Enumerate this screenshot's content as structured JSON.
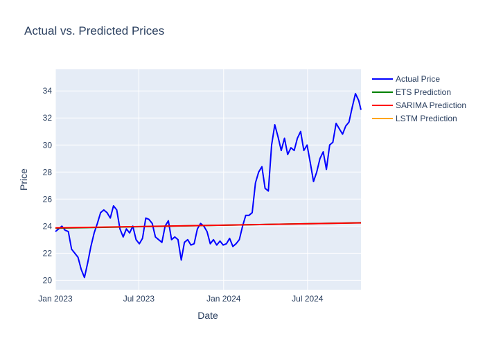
{
  "chart_data": {
    "type": "line",
    "title": "Actual vs. Predicted Prices",
    "xlabel": "Date",
    "ylabel": "Price",
    "x_axis_type": "date",
    "xlim": [
      "2023-01-01",
      "2024-10-25"
    ],
    "ylim": [
      19.3,
      35.6
    ],
    "xticks": [
      {
        "value": "2023-01-01",
        "label": "Jan 2023"
      },
      {
        "value": "2023-07-01",
        "label": "Jul 2023"
      },
      {
        "value": "2024-01-01",
        "label": "Jan 2024"
      },
      {
        "value": "2024-07-01",
        "label": "Jul 2024"
      }
    ],
    "yticks": [
      20,
      22,
      24,
      26,
      28,
      30,
      32,
      34
    ],
    "grid": true,
    "legend_position": "top-right, outside plot",
    "colors": {
      "plot_background": "#e5ecf6",
      "grid": "#ffffff",
      "text": "#2a3f5f"
    },
    "series": [
      {
        "name": "Actual Price",
        "color": "#0000ff",
        "x": [
          "2023-01-01",
          "2023-01-08",
          "2023-01-15",
          "2023-01-22",
          "2023-01-29",
          "2023-02-05",
          "2023-02-12",
          "2023-02-19",
          "2023-02-26",
          "2023-03-05",
          "2023-03-12",
          "2023-03-19",
          "2023-03-26",
          "2023-04-02",
          "2023-04-09",
          "2023-04-16",
          "2023-04-23",
          "2023-04-30",
          "2023-05-07",
          "2023-05-14",
          "2023-05-21",
          "2023-05-28",
          "2023-06-04",
          "2023-06-11",
          "2023-06-18",
          "2023-06-25",
          "2023-07-02",
          "2023-07-09",
          "2023-07-16",
          "2023-07-23",
          "2023-07-30",
          "2023-08-06",
          "2023-08-13",
          "2023-08-20",
          "2023-08-27",
          "2023-09-03",
          "2023-09-10",
          "2023-09-17",
          "2023-09-24",
          "2023-10-01",
          "2023-10-08",
          "2023-10-15",
          "2023-10-22",
          "2023-10-29",
          "2023-11-05",
          "2023-11-12",
          "2023-11-19",
          "2023-11-26",
          "2023-12-03",
          "2023-12-10",
          "2023-12-17",
          "2023-12-24",
          "2023-12-31",
          "2024-01-07",
          "2024-01-14",
          "2024-01-21",
          "2024-01-28",
          "2024-02-04",
          "2024-02-11",
          "2024-02-18",
          "2024-02-25",
          "2024-03-03",
          "2024-03-10",
          "2024-03-17",
          "2024-03-24",
          "2024-03-31",
          "2024-04-07",
          "2024-04-14",
          "2024-04-21",
          "2024-04-28",
          "2024-05-05",
          "2024-05-12",
          "2024-05-19",
          "2024-05-26",
          "2024-06-02",
          "2024-06-09",
          "2024-06-16",
          "2024-06-23",
          "2024-06-30",
          "2024-07-07",
          "2024-07-14",
          "2024-07-21",
          "2024-07-28",
          "2024-08-04",
          "2024-08-11",
          "2024-08-18",
          "2024-08-25",
          "2024-09-01",
          "2024-09-08",
          "2024-09-15",
          "2024-09-22",
          "2024-09-29",
          "2024-10-06",
          "2024-10-13",
          "2024-10-20",
          "2024-10-25"
        ],
        "y": [
          23.6,
          23.8,
          24.0,
          23.7,
          23.6,
          22.3,
          22.0,
          21.7,
          20.8,
          20.2,
          21.3,
          22.5,
          23.5,
          24.2,
          25.0,
          25.2,
          25.0,
          24.6,
          25.5,
          25.2,
          23.8,
          23.2,
          23.8,
          23.5,
          24.0,
          23.0,
          22.7,
          23.1,
          24.6,
          24.5,
          24.2,
          23.2,
          23.0,
          22.8,
          24.0,
          24.4,
          23.0,
          23.2,
          23.0,
          21.5,
          22.8,
          23.0,
          22.6,
          22.7,
          23.8,
          24.2,
          24.0,
          23.6,
          22.7,
          23.0,
          22.6,
          22.9,
          22.6,
          22.7,
          23.1,
          22.5,
          22.7,
          23.0,
          24.0,
          24.8,
          24.8,
          25.0,
          27.2,
          28.0,
          28.4,
          26.8,
          26.6,
          30.0,
          31.5,
          30.6,
          29.6,
          30.5,
          29.3,
          29.8,
          29.6,
          30.5,
          31.0,
          29.6,
          30.0,
          28.7,
          27.3,
          28.0,
          29.0,
          29.5,
          28.2,
          30.0,
          30.2,
          31.6,
          31.2,
          30.8,
          31.4,
          31.7,
          32.8,
          33.8,
          33.3,
          32.6
        ]
      },
      {
        "name": "ETS Prediction",
        "color": "#008000",
        "x": [
          "2023-01-01",
          "2024-10-25"
        ],
        "y": [
          23.85,
          24.25
        ]
      },
      {
        "name": "SARIMA Prediction",
        "color": "#ff0000",
        "x": [
          "2023-01-01",
          "2024-10-25"
        ],
        "y": [
          23.87,
          24.24
        ]
      },
      {
        "name": "LSTM Prediction",
        "color": "#ffa500",
        "x": [],
        "y": []
      }
    ]
  }
}
